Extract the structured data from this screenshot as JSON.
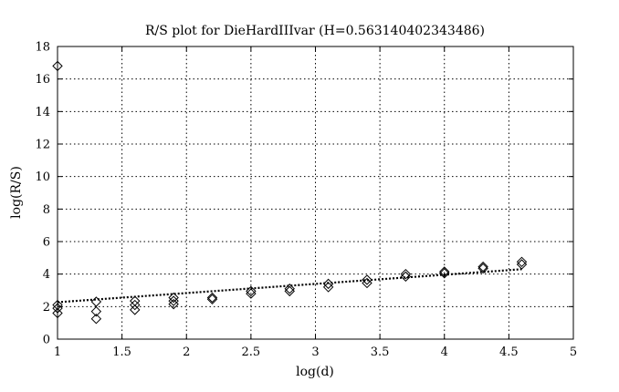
{
  "chart_data": {
    "type": "scatter",
    "title": "R/S plot for DieHardIIIvar (H=0.563140402343486)",
    "xlabel": "log(d)",
    "ylabel": "log(R/S)",
    "xlim": [
      1,
      5
    ],
    "ylim": [
      0,
      18
    ],
    "xticks": [
      "1",
      "1.5",
      "2",
      "2.5",
      "3",
      "3.5",
      "4",
      "4.5",
      "5"
    ],
    "yticks": [
      "0",
      "2",
      "4",
      "6",
      "8",
      "10",
      "12",
      "14",
      "16",
      "18"
    ],
    "grid": true,
    "marker": "diamond",
    "points": [
      {
        "x": 1.0,
        "y": 16.8
      },
      {
        "x": 1.0,
        "y": 2.1
      },
      {
        "x": 1.0,
        "y": 1.9
      },
      {
        "x": 1.0,
        "y": 1.6
      },
      {
        "x": 1.3,
        "y": 2.3
      },
      {
        "x": 1.3,
        "y": 1.7
      },
      {
        "x": 1.3,
        "y": 1.25
      },
      {
        "x": 1.6,
        "y": 2.35
      },
      {
        "x": 1.6,
        "y": 2.1
      },
      {
        "x": 1.6,
        "y": 1.8
      },
      {
        "x": 1.9,
        "y": 2.55
      },
      {
        "x": 1.9,
        "y": 2.35
      },
      {
        "x": 1.9,
        "y": 2.15
      },
      {
        "x": 2.2,
        "y": 2.55
      },
      {
        "x": 2.2,
        "y": 2.45
      },
      {
        "x": 2.5,
        "y": 2.95
      },
      {
        "x": 2.5,
        "y": 2.8
      },
      {
        "x": 2.8,
        "y": 3.1
      },
      {
        "x": 2.8,
        "y": 2.95
      },
      {
        "x": 3.1,
        "y": 3.4
      },
      {
        "x": 3.1,
        "y": 3.2
      },
      {
        "x": 3.4,
        "y": 3.65
      },
      {
        "x": 3.4,
        "y": 3.45
      },
      {
        "x": 3.7,
        "y": 4.0
      },
      {
        "x": 3.7,
        "y": 3.85
      },
      {
        "x": 4.0,
        "y": 4.15
      },
      {
        "x": 4.0,
        "y": 4.05
      },
      {
        "x": 4.3,
        "y": 4.45
      },
      {
        "x": 4.3,
        "y": 4.35
      },
      {
        "x": 4.6,
        "y": 4.75
      },
      {
        "x": 4.6,
        "y": 4.6
      }
    ],
    "fit_line": {
      "x": [
        1.0,
        4.6
      ],
      "y": [
        2.27,
        4.3
      ]
    }
  }
}
